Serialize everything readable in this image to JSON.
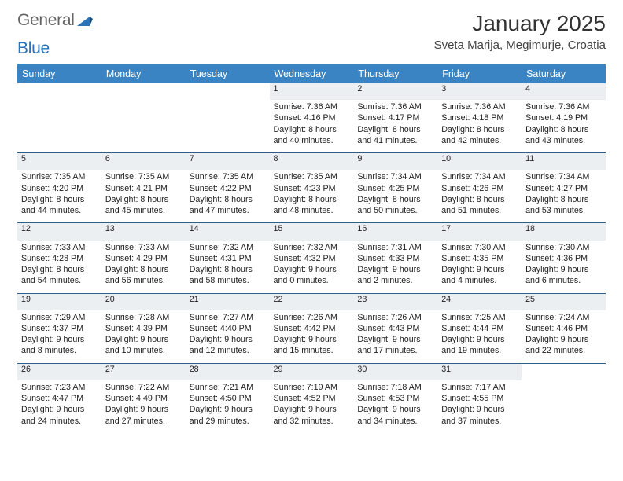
{
  "brand": {
    "part1": "General",
    "part2": "Blue"
  },
  "title": "January 2025",
  "subtitle": "Sveta Marija, Megimurje, Croatia",
  "colors": {
    "header_bg": "#3a84c4",
    "header_fg": "#ffffff",
    "grid_line": "#2b5e8a",
    "daynum_bg": "#eceff2",
    "daynum_fg": "#555555",
    "text": "#222222",
    "brand_blue": "#2a73b8",
    "brand_gray": "#666666"
  },
  "weekdays": [
    "Sunday",
    "Monday",
    "Tuesday",
    "Wednesday",
    "Thursday",
    "Friday",
    "Saturday"
  ],
  "weeks": [
    [
      null,
      null,
      null,
      {
        "n": "1",
        "sr": "7:36 AM",
        "ss": "4:16 PM",
        "dl": "8 hours and 40 minutes."
      },
      {
        "n": "2",
        "sr": "7:36 AM",
        "ss": "4:17 PM",
        "dl": "8 hours and 41 minutes."
      },
      {
        "n": "3",
        "sr": "7:36 AM",
        "ss": "4:18 PM",
        "dl": "8 hours and 42 minutes."
      },
      {
        "n": "4",
        "sr": "7:36 AM",
        "ss": "4:19 PM",
        "dl": "8 hours and 43 minutes."
      }
    ],
    [
      {
        "n": "5",
        "sr": "7:35 AM",
        "ss": "4:20 PM",
        "dl": "8 hours and 44 minutes."
      },
      {
        "n": "6",
        "sr": "7:35 AM",
        "ss": "4:21 PM",
        "dl": "8 hours and 45 minutes."
      },
      {
        "n": "7",
        "sr": "7:35 AM",
        "ss": "4:22 PM",
        "dl": "8 hours and 47 minutes."
      },
      {
        "n": "8",
        "sr": "7:35 AM",
        "ss": "4:23 PM",
        "dl": "8 hours and 48 minutes."
      },
      {
        "n": "9",
        "sr": "7:34 AM",
        "ss": "4:25 PM",
        "dl": "8 hours and 50 minutes."
      },
      {
        "n": "10",
        "sr": "7:34 AM",
        "ss": "4:26 PM",
        "dl": "8 hours and 51 minutes."
      },
      {
        "n": "11",
        "sr": "7:34 AM",
        "ss": "4:27 PM",
        "dl": "8 hours and 53 minutes."
      }
    ],
    [
      {
        "n": "12",
        "sr": "7:33 AM",
        "ss": "4:28 PM",
        "dl": "8 hours and 54 minutes."
      },
      {
        "n": "13",
        "sr": "7:33 AM",
        "ss": "4:29 PM",
        "dl": "8 hours and 56 minutes."
      },
      {
        "n": "14",
        "sr": "7:32 AM",
        "ss": "4:31 PM",
        "dl": "8 hours and 58 minutes."
      },
      {
        "n": "15",
        "sr": "7:32 AM",
        "ss": "4:32 PM",
        "dl": "9 hours and 0 minutes."
      },
      {
        "n": "16",
        "sr": "7:31 AM",
        "ss": "4:33 PM",
        "dl": "9 hours and 2 minutes."
      },
      {
        "n": "17",
        "sr": "7:30 AM",
        "ss": "4:35 PM",
        "dl": "9 hours and 4 minutes."
      },
      {
        "n": "18",
        "sr": "7:30 AM",
        "ss": "4:36 PM",
        "dl": "9 hours and 6 minutes."
      }
    ],
    [
      {
        "n": "19",
        "sr": "7:29 AM",
        "ss": "4:37 PM",
        "dl": "9 hours and 8 minutes."
      },
      {
        "n": "20",
        "sr": "7:28 AM",
        "ss": "4:39 PM",
        "dl": "9 hours and 10 minutes."
      },
      {
        "n": "21",
        "sr": "7:27 AM",
        "ss": "4:40 PM",
        "dl": "9 hours and 12 minutes."
      },
      {
        "n": "22",
        "sr": "7:26 AM",
        "ss": "4:42 PM",
        "dl": "9 hours and 15 minutes."
      },
      {
        "n": "23",
        "sr": "7:26 AM",
        "ss": "4:43 PM",
        "dl": "9 hours and 17 minutes."
      },
      {
        "n": "24",
        "sr": "7:25 AM",
        "ss": "4:44 PM",
        "dl": "9 hours and 19 minutes."
      },
      {
        "n": "25",
        "sr": "7:24 AM",
        "ss": "4:46 PM",
        "dl": "9 hours and 22 minutes."
      }
    ],
    [
      {
        "n": "26",
        "sr": "7:23 AM",
        "ss": "4:47 PM",
        "dl": "9 hours and 24 minutes."
      },
      {
        "n": "27",
        "sr": "7:22 AM",
        "ss": "4:49 PM",
        "dl": "9 hours and 27 minutes."
      },
      {
        "n": "28",
        "sr": "7:21 AM",
        "ss": "4:50 PM",
        "dl": "9 hours and 29 minutes."
      },
      {
        "n": "29",
        "sr": "7:19 AM",
        "ss": "4:52 PM",
        "dl": "9 hours and 32 minutes."
      },
      {
        "n": "30",
        "sr": "7:18 AM",
        "ss": "4:53 PM",
        "dl": "9 hours and 34 minutes."
      },
      {
        "n": "31",
        "sr": "7:17 AM",
        "ss": "4:55 PM",
        "dl": "9 hours and 37 minutes."
      },
      null
    ]
  ],
  "labels": {
    "sunrise": "Sunrise: ",
    "sunset": "Sunset: ",
    "daylight": "Daylight: "
  }
}
